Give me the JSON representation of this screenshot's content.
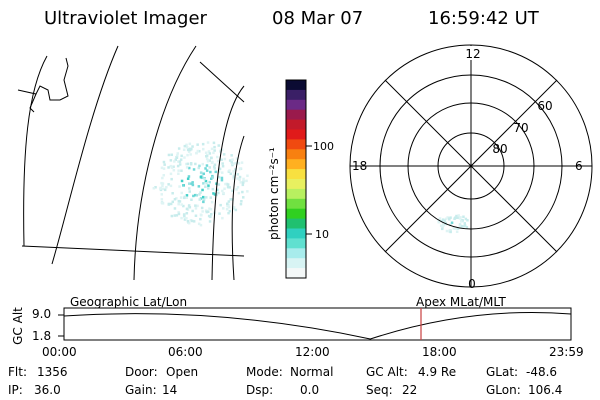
{
  "header": {
    "title": "Ultraviolet Imager",
    "date": "08 Mar 07",
    "time": "16:59:42 UT"
  },
  "colorbar": {
    "unit_label": "photon cm⁻²s⁻¹",
    "tick_labels": [
      "100",
      "10"
    ],
    "colors": [
      "#0b0b33",
      "#3a1f66",
      "#6b2a86",
      "#9a1a4c",
      "#c21a2a",
      "#e01a1a",
      "#f04a10",
      "#f88010",
      "#ffb020",
      "#f8e040",
      "#e8f060",
      "#b8f060",
      "#70e040",
      "#30d020",
      "#20c070",
      "#30d0c0",
      "#60e0d0",
      "#a8ecec",
      "#d8f4f4",
      "#f4f8f8"
    ]
  },
  "geo_panel": {
    "label": "Geographic Lat/Lon"
  },
  "polar_panel": {
    "label": "Apex MLat/MLT",
    "mlt_labels": {
      "top": "12",
      "left": "18",
      "right": "6",
      "bottom": "0"
    },
    "lat_labels": [
      "60",
      "70",
      "80"
    ]
  },
  "altitude_plot": {
    "ylabel": "GC Alt",
    "yticks": [
      "9.0",
      "1.8"
    ],
    "xticks": [
      "00:00",
      "06:00",
      "12:00",
      "18:00",
      "23:59"
    ],
    "marker_color": "#c84040"
  },
  "status": {
    "row1": [
      {
        "key": "Flt:",
        "value": "1356"
      },
      {
        "key": "Door:",
        "value": "Open"
      },
      {
        "key": "Mode:",
        "value": "Normal"
      },
      {
        "key": "GC Alt:",
        "value": "4.9 Re"
      },
      {
        "key": "GLat:",
        "value": "-48.6"
      }
    ],
    "row2": [
      {
        "key": "IP:",
        "value": "36.0"
      },
      {
        "key": "Gain:",
        "value": "14"
      },
      {
        "key": "Dsp:",
        "value": "0.0"
      },
      {
        "key": "Seq:",
        "value": "22"
      },
      {
        "key": "GLon:",
        "value": "106.4"
      }
    ]
  }
}
